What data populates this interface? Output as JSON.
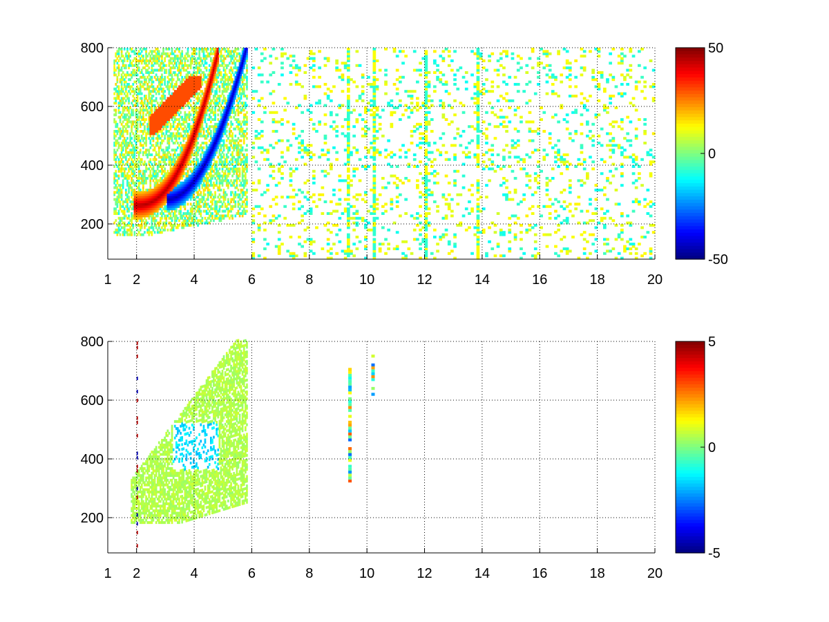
{
  "colors": {
    "background": "#ffffff",
    "axis": "#000000",
    "grid": "#000000",
    "colormap": "jet"
  },
  "chart_data": [
    {
      "type": "heatmap",
      "title": "",
      "xlabel": "",
      "ylabel": "",
      "xlim": [
        1,
        20
      ],
      "ylim": [
        80,
        800
      ],
      "x_ticks": [
        1,
        2,
        4,
        6,
        8,
        10,
        12,
        14,
        16,
        18,
        20
      ],
      "y_ticks": [
        200,
        400,
        600,
        800
      ],
      "grid": true,
      "colorbar": {
        "clim": [
          -50,
          50
        ],
        "ticks": [
          50,
          0,
          -50
        ],
        "colormap": "jet"
      },
      "features": [
        {
          "name": "positive ridge",
          "value": 45,
          "x_range": [
            1.9,
            4.8
          ],
          "y_start": 240,
          "y_end": 780
        },
        {
          "name": "negative ridge",
          "value": -45,
          "x_range": [
            3.0,
            5.8
          ],
          "y_start": 260,
          "y_end": 780
        },
        {
          "name": "upper positive band",
          "value": 30,
          "x_range": [
            2.4,
            4.2
          ],
          "y_start": 500,
          "y_end": 700
        },
        {
          "name": "scattered noise",
          "value_range": [
            -15,
            15
          ],
          "x_range": [
            6,
            20
          ]
        }
      ]
    },
    {
      "type": "heatmap",
      "title": "",
      "xlabel": "",
      "ylabel": "",
      "xlim": [
        1,
        20
      ],
      "ylim": [
        80,
        800
      ],
      "x_ticks": [
        1,
        2,
        4,
        6,
        8,
        10,
        12,
        14,
        16,
        18,
        20
      ],
      "y_ticks": [
        200,
        400,
        600,
        800
      ],
      "grid": true,
      "colorbar": {
        "clim": [
          -5,
          5
        ],
        "ticks": [
          5,
          0,
          -5
        ],
        "colormap": "jet"
      },
      "features": [
        {
          "name": "main region",
          "value_range": [
            -1.5,
            0.8
          ],
          "x_range": [
            1.8,
            5.8
          ],
          "y_range": [
            180,
            800
          ]
        },
        {
          "name": "column near 9.4",
          "value_range": [
            -3,
            3
          ],
          "x": 9.4,
          "y_range": [
            320,
            740
          ]
        },
        {
          "name": "column near 10.2",
          "value_range": [
            -3,
            3
          ],
          "x": 10.2,
          "y_range": [
            615,
            755
          ]
        }
      ]
    }
  ]
}
